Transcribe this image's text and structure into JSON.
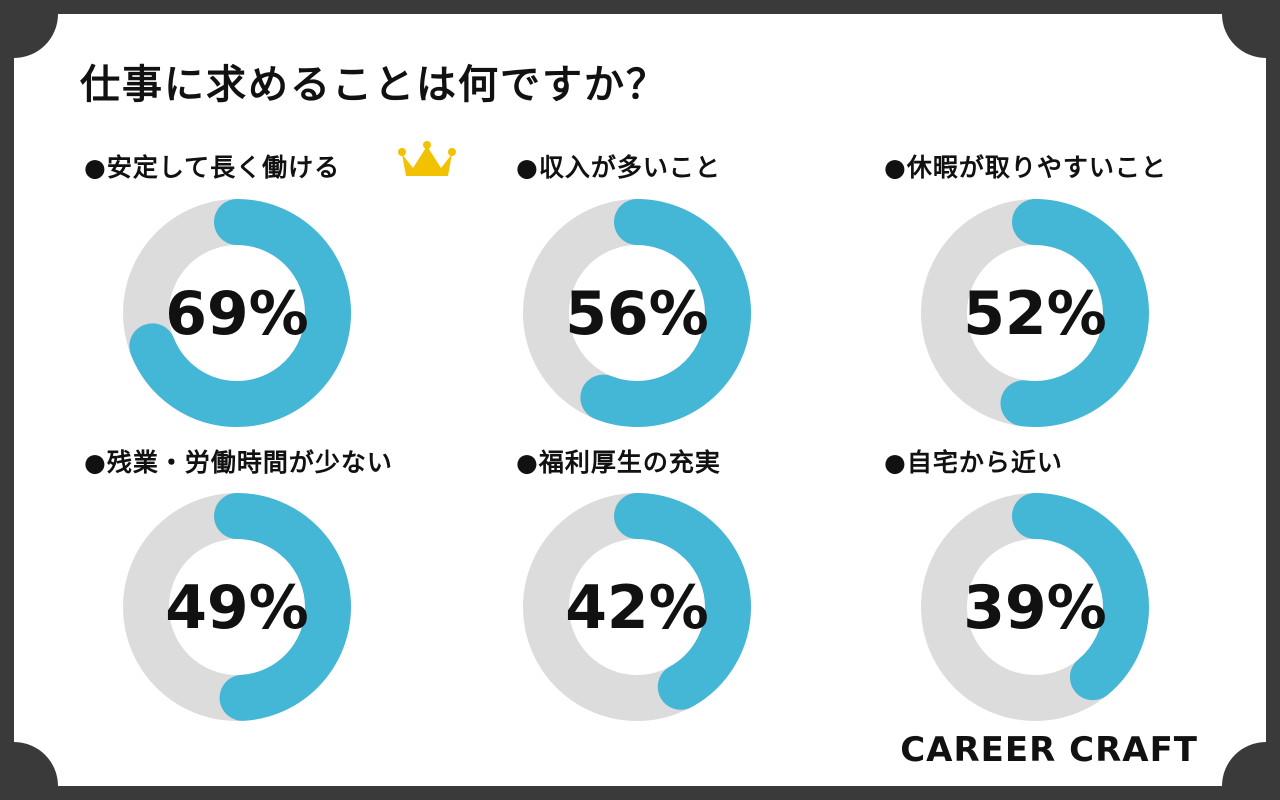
{
  "title": "仕事に求めることは何ですか？",
  "brand": "CAREER CRAFT",
  "bullet": "●",
  "colors": {
    "accent": "#44b6d6",
    "track": "#dcdcdc",
    "background": "#3a3a3a",
    "card": "#ffffff",
    "crown": "#f2c200"
  },
  "chart_data": {
    "type": "pie",
    "variant": "donut",
    "title": "仕事に求めることは何ですか？",
    "unit": "%",
    "categories": [
      "安定して長く働ける",
      "収入が多いこと",
      "休暇が取りやすいこと",
      "残業・労働時間が少ない",
      "福利厚生の充実",
      "自宅から近い"
    ],
    "values": [
      69,
      56,
      52,
      49,
      42,
      39
    ],
    "labels": [
      "69%",
      "56%",
      "52%",
      "49%",
      "42%",
      "39%"
    ],
    "top_item_icon": "crown-icon"
  }
}
